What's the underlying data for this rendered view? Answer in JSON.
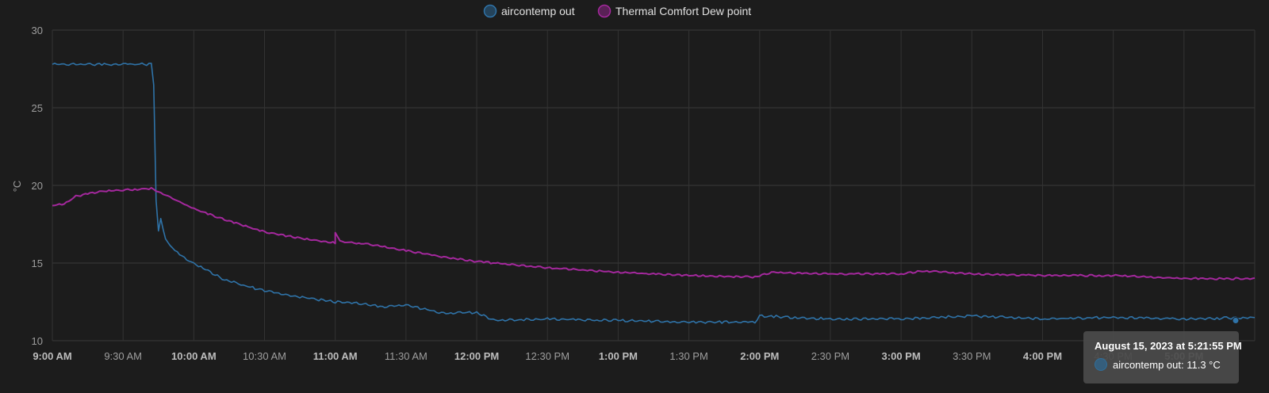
{
  "chart_data": {
    "type": "line",
    "ylabel": "°C",
    "ylim": [
      10,
      30
    ],
    "y_ticks": [
      "30",
      "25",
      "20",
      "15",
      "10"
    ],
    "x_range": [
      "9:00 AM",
      "5:30 PM"
    ],
    "x_ticks": [
      {
        "label": "9:00 AM",
        "bold": true
      },
      {
        "label": "9:30 AM",
        "bold": false
      },
      {
        "label": "10:00 AM",
        "bold": true
      },
      {
        "label": "10:30 AM",
        "bold": false
      },
      {
        "label": "11:00 AM",
        "bold": true
      },
      {
        "label": "11:30 AM",
        "bold": false
      },
      {
        "label": "12:00 PM",
        "bold": true
      },
      {
        "label": "12:30 PM",
        "bold": false
      },
      {
        "label": "1:00 PM",
        "bold": true
      },
      {
        "label": "1:30 PM",
        "bold": false
      },
      {
        "label": "2:00 PM",
        "bold": true
      },
      {
        "label": "2:30 PM",
        "bold": false
      },
      {
        "label": "3:00 PM",
        "bold": true
      },
      {
        "label": "3:30 PM",
        "bold": false
      },
      {
        "label": "4:00 PM",
        "bold": true
      },
      {
        "label": "4:30 PM",
        "bold": false
      },
      {
        "label": "5:00 PM",
        "bold": true
      }
    ],
    "grid": true,
    "legend_position": "top-center",
    "series": [
      {
        "name": "aircontemp out",
        "color": "#2f73a8",
        "points": [
          [
            "9:00 AM",
            27.8
          ],
          [
            "9:42 AM",
            27.8
          ],
          [
            "9:43 AM",
            26.5
          ],
          [
            "9:44 AM",
            19.0
          ],
          [
            "9:45 AM",
            17.0
          ],
          [
            "9:46 AM",
            17.9
          ],
          [
            "9:48 AM",
            16.5
          ],
          [
            "9:52 AM",
            15.8
          ],
          [
            "9:56 AM",
            15.3
          ],
          [
            "10:00 AM",
            15.0
          ],
          [
            "10:06 AM",
            14.5
          ],
          [
            "10:12 AM",
            14.0
          ],
          [
            "10:20 AM",
            13.6
          ],
          [
            "10:28 AM",
            13.3
          ],
          [
            "10:35 AM",
            13.1
          ],
          [
            "10:45 AM",
            12.8
          ],
          [
            "11:00 AM",
            12.5
          ],
          [
            "11:10 AM",
            12.4
          ],
          [
            "11:20 AM",
            12.2
          ],
          [
            "11:30 AM",
            12.3
          ],
          [
            "11:45 AM",
            11.8
          ],
          [
            "12:00 PM",
            11.8
          ],
          [
            "12:08 PM",
            11.3
          ],
          [
            "12:30 PM",
            11.4
          ],
          [
            "1:00 PM",
            11.3
          ],
          [
            "1:30 PM",
            11.2
          ],
          [
            "1:58 PM",
            11.2
          ],
          [
            "2:00 PM",
            11.6
          ],
          [
            "2:30 PM",
            11.4
          ],
          [
            "3:00 PM",
            11.4
          ],
          [
            "3:30 PM",
            11.6
          ],
          [
            "4:00 PM",
            11.4
          ],
          [
            "4:30 PM",
            11.5
          ],
          [
            "5:00 PM",
            11.4
          ],
          [
            "5:30 PM",
            11.5
          ]
        ]
      },
      {
        "name": "Thermal Comfort Dew point",
        "color": "#a4289d",
        "points": [
          [
            "9:00 AM",
            18.7
          ],
          [
            "9:05 AM",
            18.8
          ],
          [
            "9:10 AM",
            19.3
          ],
          [
            "9:20 AM",
            19.6
          ],
          [
            "9:30 AM",
            19.7
          ],
          [
            "9:42 AM",
            19.8
          ],
          [
            "9:45 AM",
            19.6
          ],
          [
            "10:00 AM",
            18.5
          ],
          [
            "10:15 AM",
            17.7
          ],
          [
            "10:30 AM",
            17.0
          ],
          [
            "10:45 AM",
            16.6
          ],
          [
            "11:00 AM",
            16.3
          ],
          [
            "11:00 AM",
            17.0
          ],
          [
            "11:02 AM",
            16.4
          ],
          [
            "11:15 AM",
            16.2
          ],
          [
            "11:30 AM",
            15.8
          ],
          [
            "11:45 AM",
            15.4
          ],
          [
            "12:00 PM",
            15.1
          ],
          [
            "12:30 PM",
            14.7
          ],
          [
            "1:00 PM",
            14.4
          ],
          [
            "1:30 PM",
            14.2
          ],
          [
            "1:58 PM",
            14.1
          ],
          [
            "2:05 PM",
            14.4
          ],
          [
            "2:30 PM",
            14.3
          ],
          [
            "3:00 PM",
            14.3
          ],
          [
            "3:10 PM",
            14.5
          ],
          [
            "3:30 PM",
            14.3
          ],
          [
            "4:00 PM",
            14.2
          ],
          [
            "4:30 PM",
            14.2
          ],
          [
            "5:00 PM",
            14.0
          ],
          [
            "5:30 PM",
            14.0
          ]
        ]
      }
    ]
  },
  "tooltip": {
    "title": "August 15, 2023 at 5:21:55 PM",
    "row": "aircontemp out: 11.3 °C",
    "point": [
      "5:21:55 PM",
      11.3
    ]
  }
}
